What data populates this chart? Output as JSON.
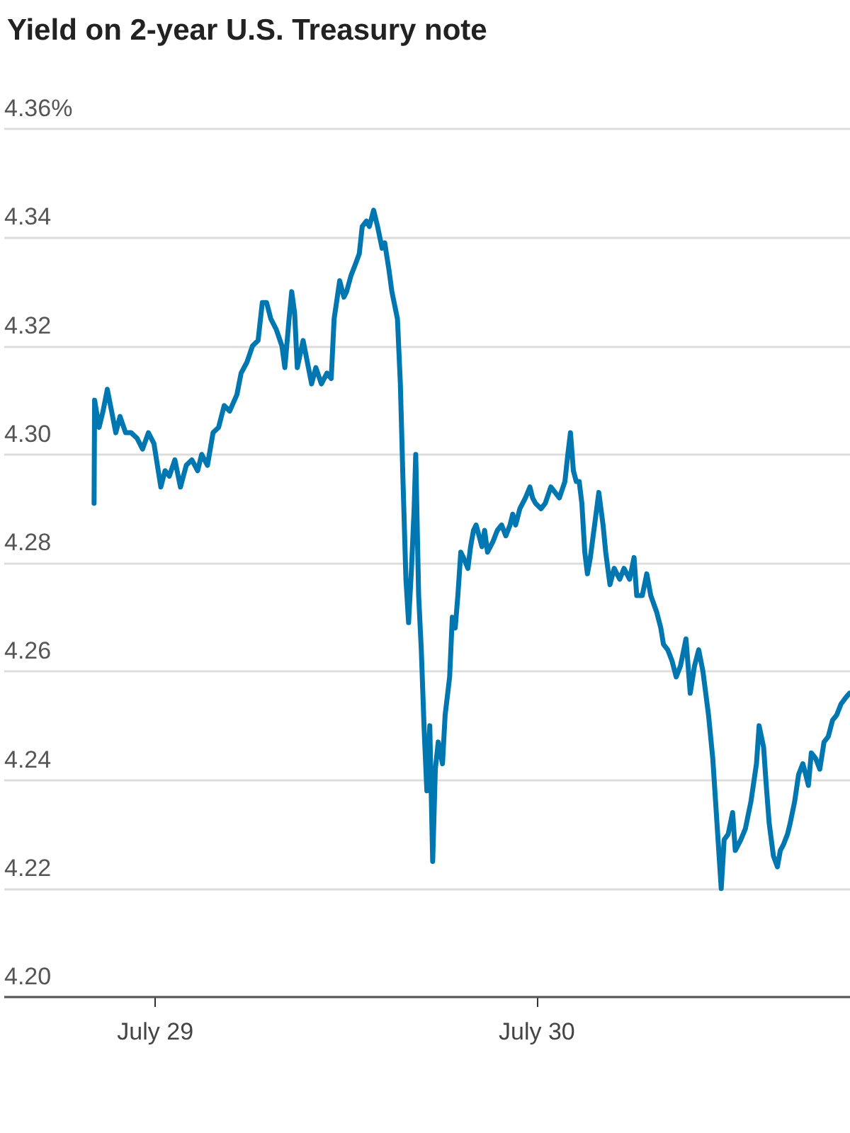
{
  "chart_data": {
    "type": "line",
    "title": "Yield on 2-year U.S. Treasury note",
    "x": [
      "--07-28T20:09",
      "--07-28T20:11",
      "--07-28T20:28",
      "--07-28T20:43",
      "--07-28T20:59",
      "--07-28T21:15",
      "--07-28T21:31",
      "--07-28T21:47",
      "--07-28T22:08",
      "--07-28T22:29",
      "--07-28T22:51",
      "--07-28T23:12",
      "--07-28T23:34",
      "--07-28T23:55",
      "--07-29T00:21",
      "--07-29T00:37",
      "--07-29T00:53",
      "--07-29T01:14",
      "--07-29T01:35",
      "--07-29T01:57",
      "--07-29T02:18",
      "--07-29T02:40",
      "--07-29T02:55",
      "--07-29T03:17",
      "--07-29T03:38",
      "--07-29T03:59",
      "--07-29T04:20",
      "--07-29T04:41",
      "--07-29T05:08",
      "--07-29T05:24",
      "--07-29T05:46",
      "--07-29T06:07",
      "--07-29T06:28",
      "--07-29T06:44",
      "--07-29T07:00",
      "--07-29T07:16",
      "--07-29T07:37",
      "--07-29T07:58",
      "--07-29T08:09",
      "--07-29T08:25",
      "--07-29T08:35",
      "--07-29T08:46",
      "--07-29T08:56",
      "--07-29T09:18",
      "--07-29T09:34",
      "--07-29T09:50",
      "--07-29T10:06",
      "--07-29T10:27",
      "--07-29T10:48",
      "--07-29T11:04",
      "--07-29T11:15",
      "--07-29T11:36",
      "--07-29T11:52",
      "--07-29T12:02",
      "--07-29T12:19",
      "--07-29T12:35",
      "--07-29T12:50",
      "--07-29T13:01",
      "--07-29T13:17",
      "--07-29T13:28",
      "--07-29T13:44",
      "--07-29T13:59",
      "--07-29T14:16",
      "--07-29T14:26",
      "--07-29T14:42",
      "--07-29T14:53",
      "--07-29T15:14",
      "--07-29T15:25",
      "--07-29T15:35",
      "--07-29T15:46",
      "--07-29T15:56",
      "--07-29T16:07",
      "--07-29T16:17",
      "--07-29T16:23",
      "--07-29T16:34",
      "--07-29T16:44",
      "--07-29T16:55",
      "--07-29T17:05",
      "--07-29T17:16",
      "--07-29T17:27",
      "--07-29T17:37",
      "--07-29T17:48",
      "--07-29T18:04",
      "--07-29T18:14",
      "--07-29T18:31",
      "--07-29T18:41",
      "--07-29T18:52",
      "--07-29T19:02",
      "--07-29T19:13",
      "--07-29T19:23",
      "--07-29T19:40",
      "--07-29T19:50",
      "--07-29T20:01",
      "--07-29T20:11",
      "--07-29T20:22",
      "--07-29T20:33",
      "--07-29T20:43",
      "--07-29T20:54",
      "--07-29T21:15",
      "--07-29T21:31",
      "--07-29T21:47",
      "--07-29T22:03",
      "--07-29T22:19",
      "--07-29T22:29",
      "--07-29T22:40",
      "--07-29T22:56",
      "--07-29T23:17",
      "--07-29T23:34",
      "--07-29T23:44",
      "--07-29T23:55",
      "--07-30T00:16",
      "--07-30T00:32",
      "--07-30T00:53",
      "--07-30T01:09",
      "--07-30T01:25",
      "--07-30T01:46",
      "--07-30T01:57",
      "--07-30T02:07",
      "--07-30T02:18",
      "--07-30T02:29",
      "--07-30T02:40",
      "--07-30T02:50",
      "--07-30T03:01",
      "--07-30T03:11",
      "--07-30T03:22",
      "--07-30T03:38",
      "--07-30T03:54",
      "--07-30T04:10",
      "--07-30T04:20",
      "--07-30T04:36",
      "--07-30T04:52",
      "--07-30T05:13",
      "--07-30T05:29",
      "--07-30T05:50",
      "--07-30T06:07",
      "--07-30T06:17",
      "--07-30T06:38",
      "--07-30T06:55",
      "--07-30T07:10",
      "--07-30T07:32",
      "--07-30T07:48",
      "--07-30T07:58",
      "--07-30T08:14",
      "--07-30T08:30",
      "--07-30T08:46",
      "--07-30T09:02",
      "--07-30T09:23",
      "--07-30T09:39",
      "--07-30T09:55",
      "--07-30T10:11",
      "--07-30T10:27",
      "--07-30T10:48",
      "--07-30T11:04",
      "--07-30T11:20",
      "--07-30T11:36",
      "--07-30T11:47",
      "--07-30T12:02",
      "--07-30T12:19",
      "--07-30T12:29",
      "--07-30T12:50",
      "--07-30T13:07",
      "--07-30T13:28",
      "--07-30T13:49",
      "--07-30T13:59",
      "--07-30T14:16",
      "--07-30T14:26",
      "--07-30T14:37",
      "--07-30T14:53",
      "--07-30T15:08",
      "--07-30T15:19",
      "--07-30T15:30",
      "--07-30T15:46",
      "--07-30T15:56",
      "--07-30T16:13",
      "--07-30T16:28",
      "--07-30T16:44",
      "--07-30T16:55",
      "--07-30T17:05",
      "--07-30T17:16",
      "--07-30T17:32",
      "--07-30T17:48",
      "--07-30T18:04",
      "--07-30T18:20",
      "--07-30T18:36",
      "--07-30T18:52",
      "--07-30T19:08",
      "--07-30T19:23",
      "--07-30T19:40"
    ],
    "series": [
      {
        "color": "#0077b0",
        "values": [
          4.291,
          4.31,
          4.305,
          4.308,
          4.312,
          4.308,
          4.304,
          4.307,
          4.304,
          4.304,
          4.303,
          4.301,
          4.304,
          4.302,
          4.294,
          4.297,
          4.296,
          4.299,
          4.294,
          4.298,
          4.299,
          4.297,
          4.3,
          4.298,
          4.304,
          4.305,
          4.309,
          4.308,
          4.311,
          4.315,
          4.317,
          4.32,
          4.321,
          4.328,
          4.328,
          4.325,
          4.323,
          4.32,
          4.316,
          4.325,
          4.33,
          4.326,
          4.316,
          4.321,
          4.317,
          4.313,
          4.316,
          4.313,
          4.315,
          4.314,
          4.325,
          4.332,
          4.329,
          4.33,
          4.333,
          4.335,
          4.337,
          4.342,
          4.343,
          4.342,
          4.345,
          4.342,
          4.338,
          4.339,
          4.334,
          4.33,
          4.325,
          4.313,
          4.295,
          4.277,
          4.269,
          4.279,
          4.29,
          4.3,
          4.274,
          4.264,
          4.249,
          4.238,
          4.25,
          4.225,
          4.242,
          4.247,
          4.243,
          4.252,
          4.259,
          4.27,
          4.268,
          4.274,
          4.282,
          4.281,
          4.279,
          4.283,
          4.286,
          4.287,
          4.285,
          4.283,
          4.286,
          4.282,
          4.284,
          4.286,
          4.287,
          4.285,
          4.287,
          4.289,
          4.287,
          4.29,
          4.292,
          4.294,
          4.292,
          4.291,
          4.29,
          4.291,
          4.294,
          4.293,
          4.292,
          4.295,
          4.3,
          4.304,
          4.297,
          4.295,
          4.295,
          4.291,
          4.282,
          4.278,
          4.281,
          4.287,
          4.293,
          4.287,
          4.282,
          4.276,
          4.279,
          4.277,
          4.279,
          4.277,
          4.281,
          4.274,
          4.274,
          4.278,
          4.274,
          4.271,
          4.268,
          4.265,
          4.264,
          4.262,
          4.259,
          4.261,
          4.266,
          4.256,
          4.261,
          4.264,
          4.26,
          4.252,
          4.244,
          4.232,
          4.22,
          4.229,
          4.23,
          4.234,
          4.227,
          4.229,
          4.231,
          4.236,
          4.243,
          4.25,
          4.246,
          4.239,
          4.232,
          4.226,
          4.224,
          4.227,
          4.228,
          4.23,
          4.232,
          4.236,
          4.241,
          4.243,
          4.241,
          4.239,
          4.245,
          4.244,
          4.242,
          4.247,
          4.248,
          4.251,
          4.252,
          4.254,
          4.255,
          4.256
        ]
      }
    ],
    "xlim": [
      "--07-28T14:30",
      "--07-30T19:42"
    ],
    "xticks": [
      {
        "value": "--07-29",
        "label": "July 29"
      },
      {
        "value": "--07-30",
        "label": "July 30"
      }
    ],
    "ylim": [
      4.2,
      4.36
    ],
    "yticks": [
      {
        "value": 4.2,
        "label": "4.20"
      },
      4.22,
      4.24,
      4.26,
      4.28,
      {
        "value": 4.3,
        "label": "4.30"
      },
      4.32,
      4.34,
      {
        "value": 4.36,
        "label": "4.36%"
      }
    ],
    "grid": "y",
    "marker": "none",
    "line_style": "solid"
  }
}
